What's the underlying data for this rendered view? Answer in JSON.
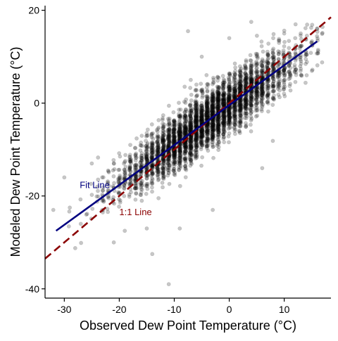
{
  "chart_data": {
    "type": "scatter",
    "title": "",
    "xlabel": "Observed Dew Point Temperature (°C)",
    "ylabel": "Modeled Dew Point Temperature (°C)",
    "xlim": [
      -33.5,
      18.5
    ],
    "ylim": [
      -42,
      21
    ],
    "xticks": [
      -30,
      -20,
      -10,
      0,
      10
    ],
    "yticks": [
      -40,
      -20,
      0,
      20
    ],
    "grid": false,
    "legend": "none",
    "colors": {
      "points_fill": "#000000",
      "points_stroke": "#333333",
      "fit_line": "#000080",
      "identity_line": "#8b0000"
    },
    "point_opacity": 0.22,
    "point_count_approx": 4000,
    "series": [
      {
        "kind": "points",
        "sample": [
          {
            "x": -32.0,
            "y": -23.0
          },
          {
            "x": -30.0,
            "y": -16.0
          },
          {
            "x": -29.0,
            "y": -22.5
          },
          {
            "x": -27.0,
            "y": -26.0
          },
          {
            "x": -26.0,
            "y": -24.0
          },
          {
            "x": -25.0,
            "y": -13.0
          },
          {
            "x": -24.0,
            "y": -18.0
          },
          {
            "x": -23.0,
            "y": -20.0
          },
          {
            "x": -21.0,
            "y": -30.0
          },
          {
            "x": -19.0,
            "y": -27.5
          },
          {
            "x": -18.0,
            "y": -9.0
          },
          {
            "x": -15.0,
            "y": -27.0
          },
          {
            "x": -14.0,
            "y": -32.5
          },
          {
            "x": -12.0,
            "y": -5.0
          },
          {
            "x": -11.0,
            "y": -39.0
          },
          {
            "x": -9.0,
            "y": -27.0
          },
          {
            "x": -7.0,
            "y": 5.0
          },
          {
            "x": -5.0,
            "y": 10.0
          },
          {
            "x": -3.0,
            "y": -23.0
          },
          {
            "x": -7.5,
            "y": 15.5
          },
          {
            "x": 0.0,
            "y": 14.0
          },
          {
            "x": 4.0,
            "y": 17.5
          },
          {
            "x": 6.0,
            "y": -14.0
          },
          {
            "x": 8.0,
            "y": 14.0
          },
          {
            "x": 10.0,
            "y": 15.0
          },
          {
            "x": 12.0,
            "y": 14.0
          },
          {
            "x": 13.0,
            "y": 15.0
          },
          {
            "x": 15.0,
            "y": 13.0
          },
          {
            "x": 16.0,
            "y": 16.0
          }
        ],
        "cloud_center_line": {
          "slope": 0.84,
          "intercept": -0.4
        },
        "cloud_x_range": [
          -32,
          17
        ]
      },
      {
        "name": "Fit Line",
        "kind": "line",
        "x": [
          -31.5,
          16.0
        ],
        "y": [
          -27.5,
          13.3
        ]
      },
      {
        "name": "1:1 Line",
        "kind": "line",
        "dashed": true,
        "x": [
          -33.5,
          18.5
        ],
        "y": [
          -33.5,
          18.5
        ]
      }
    ],
    "annotations": [
      {
        "text": "Fit Line",
        "x": -27.2,
        "y": -18.3,
        "color": "#000080"
      },
      {
        "text": "1:1 Line",
        "x": -20.0,
        "y": -24.1,
        "color": "#8b0000"
      }
    ]
  }
}
